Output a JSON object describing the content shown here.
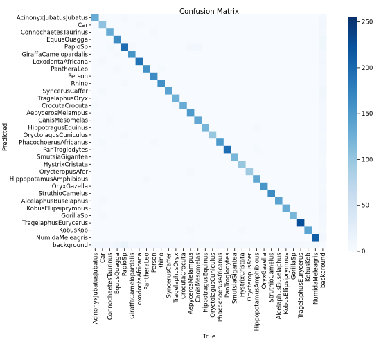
{
  "chart_data": {
    "type": "heatmap",
    "title": "Confusion Matrix",
    "xlabel": "True",
    "ylabel": "Predicted",
    "classes": [
      "AcinonyxJubatusJubatus",
      "Car",
      "ConnochaetesTaurinus",
      "EquusQuagga",
      "PapioSp",
      "GiraffaCamelopardalis",
      "LoxodontaAfricana",
      "PantheraLeo",
      "Person",
      "Rhino",
      "SyncerusCaffer",
      "TragelaphusOryx",
      "CrocutaCrocuta",
      "AepycerosMelampus",
      "CanisMesomelas",
      "HippotragusEquinus",
      "OryctolagusCuniculus",
      "PhacochoerusAfricanus",
      "PanTroglodytes",
      "SmutsiaGigantea",
      "HystrixCristata",
      "OrycteropusAfer",
      "HippopotamusAmphibious",
      "OryxGazella",
      "StruthioCamelus",
      "AlcelaphusBuselaphus",
      "KobusEllipsiprymnus",
      "GorillaSp",
      "TragelaphusEurycerus",
      "KobusKob",
      "NumidaMeleagris",
      "background"
    ],
    "diagonal": [
      130,
      105,
      130,
      165,
      195,
      155,
      190,
      160,
      165,
      160,
      140,
      125,
      130,
      150,
      135,
      120,
      100,
      150,
      195,
      120,
      100,
      95,
      135,
      155,
      165,
      140,
      130,
      120,
      225,
      140,
      210,
      0
    ],
    "off_diagonal": [
      {
        "row": 0,
        "col": 4,
        "value": 3
      },
      {
        "row": 1,
        "col": 6,
        "value": 3
      },
      {
        "row": 2,
        "col": 8,
        "value": 3
      },
      {
        "row": 4,
        "col": 2,
        "value": 4
      },
      {
        "row": 4,
        "col": 5,
        "value": 3
      },
      {
        "row": 4,
        "col": 13,
        "value": 5
      },
      {
        "row": 4,
        "col": 14,
        "value": 5
      },
      {
        "row": 5,
        "col": 3,
        "value": 3
      },
      {
        "row": 6,
        "col": 1,
        "value": 3
      },
      {
        "row": 7,
        "col": 3,
        "value": 4
      },
      {
        "row": 7,
        "col": 9,
        "value": 4
      },
      {
        "row": 9,
        "col": 4,
        "value": 3
      },
      {
        "row": 10,
        "col": 1,
        "value": 4
      },
      {
        "row": 12,
        "col": 0,
        "value": 4
      },
      {
        "row": 12,
        "col": 11,
        "value": 3
      },
      {
        "row": 14,
        "col": 2,
        "value": 3
      },
      {
        "row": 15,
        "col": 22,
        "value": 4
      },
      {
        "row": 16,
        "col": 4,
        "value": 3
      },
      {
        "row": 17,
        "col": 1,
        "value": 4
      },
      {
        "row": 17,
        "col": 8,
        "value": 3
      },
      {
        "row": 18,
        "col": 22,
        "value": 4
      },
      {
        "row": 21,
        "col": 13,
        "value": 3
      },
      {
        "row": 22,
        "col": 7,
        "value": 4
      },
      {
        "row": 25,
        "col": 1,
        "value": 3
      },
      {
        "row": 27,
        "col": 1,
        "value": 3
      },
      {
        "row": 29,
        "col": 13,
        "value": 3
      },
      {
        "row": 29,
        "col": 20,
        "value": 3
      },
      {
        "row": 0,
        "col": 31,
        "value": 6
      },
      {
        "row": 1,
        "col": 31,
        "value": 8
      },
      {
        "row": 2,
        "col": 31,
        "value": 6
      },
      {
        "row": 3,
        "col": 31,
        "value": 10
      },
      {
        "row": 4,
        "col": 31,
        "value": 10
      },
      {
        "row": 5,
        "col": 31,
        "value": 6
      },
      {
        "row": 6,
        "col": 31,
        "value": 8
      },
      {
        "row": 7,
        "col": 31,
        "value": 6
      },
      {
        "row": 8,
        "col": 31,
        "value": 5
      },
      {
        "row": 9,
        "col": 31,
        "value": 6
      },
      {
        "row": 10,
        "col": 31,
        "value": 10
      },
      {
        "row": 11,
        "col": 31,
        "value": 8
      },
      {
        "row": 12,
        "col": 31,
        "value": 6
      },
      {
        "row": 13,
        "col": 31,
        "value": 5
      },
      {
        "row": 14,
        "col": 31,
        "value": 5
      },
      {
        "row": 15,
        "col": 31,
        "value": 5
      },
      {
        "row": 16,
        "col": 31,
        "value": 4
      },
      {
        "row": 17,
        "col": 31,
        "value": 5
      },
      {
        "row": 18,
        "col": 31,
        "value": 5
      },
      {
        "row": 19,
        "col": 31,
        "value": 4
      },
      {
        "row": 20,
        "col": 31,
        "value": 4
      },
      {
        "row": 21,
        "col": 31,
        "value": 5
      },
      {
        "row": 22,
        "col": 31,
        "value": 5
      },
      {
        "row": 23,
        "col": 31,
        "value": 4
      },
      {
        "row": 24,
        "col": 31,
        "value": 5
      },
      {
        "row": 25,
        "col": 31,
        "value": 6
      },
      {
        "row": 26,
        "col": 31,
        "value": 8
      },
      {
        "row": 27,
        "col": 31,
        "value": 6
      },
      {
        "row": 28,
        "col": 31,
        "value": 6
      },
      {
        "row": 29,
        "col": 31,
        "value": 4
      },
      {
        "row": 30,
        "col": 31,
        "value": 8
      },
      {
        "row": 31,
        "col": 0,
        "value": 6
      },
      {
        "row": 31,
        "col": 1,
        "value": 8
      },
      {
        "row": 31,
        "col": 2,
        "value": 5
      },
      {
        "row": 31,
        "col": 3,
        "value": 10
      },
      {
        "row": 31,
        "col": 4,
        "value": 14
      },
      {
        "row": 31,
        "col": 5,
        "value": 6
      },
      {
        "row": 31,
        "col": 6,
        "value": 8
      },
      {
        "row": 31,
        "col": 7,
        "value": 5
      },
      {
        "row": 31,
        "col": 8,
        "value": 6
      },
      {
        "row": 31,
        "col": 9,
        "value": 5
      },
      {
        "row": 31,
        "col": 10,
        "value": 6
      },
      {
        "row": 31,
        "col": 11,
        "value": 5
      },
      {
        "row": 31,
        "col": 12,
        "value": 4
      },
      {
        "row": 31,
        "col": 13,
        "value": 5
      },
      {
        "row": 31,
        "col": 14,
        "value": 4
      },
      {
        "row": 31,
        "col": 15,
        "value": 4
      },
      {
        "row": 31,
        "col": 16,
        "value": 4
      },
      {
        "row": 31,
        "col": 17,
        "value": 5
      },
      {
        "row": 31,
        "col": 18,
        "value": 4
      },
      {
        "row": 31,
        "col": 19,
        "value": 4
      },
      {
        "row": 31,
        "col": 20,
        "value": 4
      },
      {
        "row": 31,
        "col": 21,
        "value": 4
      },
      {
        "row": 31,
        "col": 22,
        "value": 4
      },
      {
        "row": 31,
        "col": 23,
        "value": 4
      },
      {
        "row": 31,
        "col": 24,
        "value": 4
      },
      {
        "row": 31,
        "col": 25,
        "value": 5
      },
      {
        "row": 31,
        "col": 26,
        "value": 5
      },
      {
        "row": 31,
        "col": 27,
        "value": 5
      },
      {
        "row": 31,
        "col": 28,
        "value": 4
      },
      {
        "row": 31,
        "col": 29,
        "value": 4
      },
      {
        "row": 31,
        "col": 30,
        "value": 4
      }
    ],
    "colorbar": {
      "range": [
        0,
        255
      ],
      "ticks": [
        0,
        50,
        100,
        150,
        200,
        250
      ],
      "colormap": "Blues",
      "low_color": "#f7fbff",
      "high_color": "#08306b"
    },
    "grid": false
  }
}
